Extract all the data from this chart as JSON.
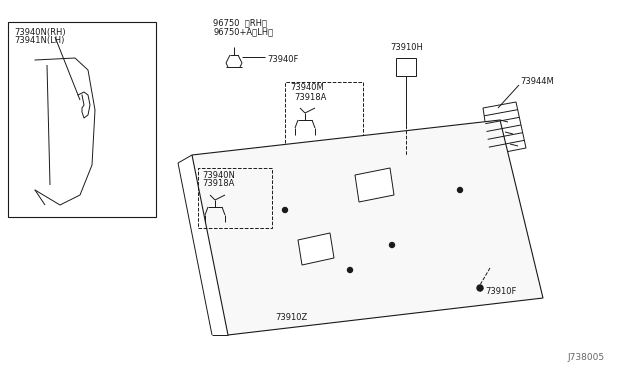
{
  "bg_color": "#ffffff",
  "line_color": "#1a1a1a",
  "text_color": "#1a1a1a",
  "diagram_id": "J738005",
  "labels": {
    "top_label1": "96750  〈RH〉",
    "top_label2": "96750+A〈LH〉",
    "lbl_73940F": "73940F",
    "lbl_73940M": "73940M",
    "lbl_73918A_top": "73918A",
    "lbl_73910H": "73910H",
    "lbl_73944M": "73944M",
    "lbl_73940N_left": "73940N",
    "lbl_73918A_left": "73918A",
    "lbl_73910Z": "73910Z",
    "lbl_73910F": "73910F",
    "lbl_inset1": "73940N(RH)",
    "lbl_inset2": "73941N(LH)"
  },
  "figsize": [
    6.4,
    3.72
  ],
  "dpi": 100
}
